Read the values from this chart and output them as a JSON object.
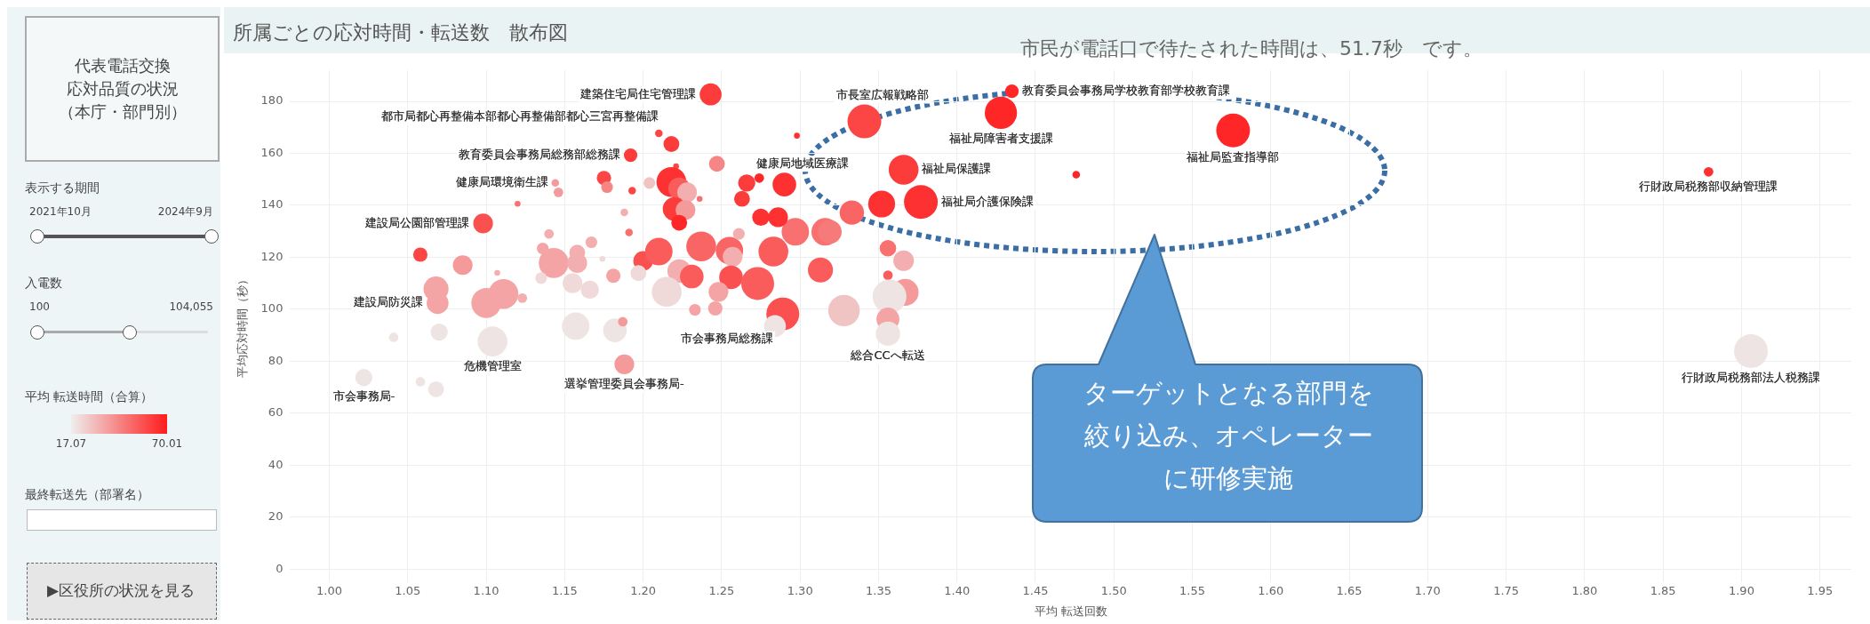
{
  "chart_data": {
    "type": "bubble",
    "title": "所属ごとの応対時間・転送数　散布図",
    "xlabel": "平均 転送回数",
    "ylabel": "平均応対時間（秒）",
    "clabel": "平均 転送時間（合算）",
    "clim": [
      17.07,
      70.01
    ],
    "cticks": [
      17.07,
      70.01
    ],
    "xlim": [
      0.975,
      1.97
    ],
    "xticks": [
      {
        "value": 1,
        "label": "1.00"
      },
      {
        "value": 1.05,
        "label": "1.05"
      },
      {
        "value": 1.1,
        "label": "1.10"
      },
      {
        "value": 1.15,
        "label": "1.15"
      },
      {
        "value": 1.2,
        "label": "1.20"
      },
      {
        "value": 1.25,
        "label": "1.25"
      },
      {
        "value": 1.3,
        "label": "1.30"
      },
      {
        "value": 1.35,
        "label": "1.35"
      },
      {
        "value": 1.4,
        "label": "1.40"
      },
      {
        "value": 1.45,
        "label": "1.45"
      },
      {
        "value": 1.5,
        "label": "1.50"
      },
      {
        "value": 1.55,
        "label": "1.55"
      },
      {
        "value": 1.6,
        "label": "1.60"
      },
      {
        "value": 1.65,
        "label": "1.65"
      },
      {
        "value": 1.7,
        "label": "1.70"
      },
      {
        "value": 1.75,
        "label": "1.75"
      },
      {
        "value": 1.8,
        "label": "1.80"
      },
      {
        "value": 1.85,
        "label": "1.85"
      },
      {
        "value": 1.9,
        "label": "1.90"
      },
      {
        "value": 1.95,
        "label": "1.95"
      }
    ],
    "ylim": [
      -5,
      192
    ],
    "yticks": [
      0,
      20,
      40,
      60,
      80,
      100,
      120,
      140,
      160,
      180
    ],
    "grid": true,
    "legend": false,
    "x": [
      1.243,
      1.21,
      1.218,
      1.192,
      1.221,
      1.247,
      1.175,
      1.177,
      1.144,
      1.146,
      1.193,
      1.204,
      1.218,
      1.223,
      1.228,
      1.236,
      1.12,
      1.188,
      1.22,
      1.227,
      1.223,
      1.098,
      1.191,
      1.14,
      1.167,
      1.136,
      1.143,
      1.158,
      1.158,
      1.058,
      1.085,
      1.107,
      1.181,
      1.135,
      1.155,
      1.166,
      1.068,
      1.069,
      1.1,
      1.111,
      1.123,
      1.174,
      1.2,
      1.21,
      1.223,
      1.215,
      1.231,
      1.237,
      1.255,
      1.257,
      1.261,
      1.256,
      1.273,
      1.248,
      1.246,
      1.233,
      1.283,
      1.289,
      1.297,
      1.316,
      1.319,
      1.313,
      1.263,
      1.266,
      1.274,
      1.29,
      1.275,
      1.286,
      1.298,
      1.328,
      1.284,
      1.07,
      1.041,
      1.104,
      1.157,
      1.182,
      1.187,
      1.188,
      1.022,
      1.058,
      1.068,
      1.197,
      1.341,
      1.435,
      1.428,
      1.576,
      1.476,
      1.366,
      1.377,
      1.352,
      1.333,
      1.356,
      1.366,
      1.356,
      1.367,
      1.357,
      1.356,
      1.356,
      1.879,
      1.906
    ],
    "values": [
      182.7,
      167.7,
      163.6,
      159.3,
      155,
      156,
      150.5,
      147,
      148.6,
      145,
      145.6,
      148.6,
      149,
      146.5,
      145,
      142.5,
      140.6,
      137.3,
      138.6,
      138.2,
      133.3,
      133,
      129.6,
      129,
      125.8,
      123.4,
      117.8,
      121.8,
      117.8,
      121,
      117,
      114,
      112.9,
      112,
      110,
      107.5,
      107.8,
      102.4,
      102.4,
      105.9,
      104.3,
      119.4,
      118.6,
      122.2,
      114.7,
      106.7,
      112.6,
      124.2,
      122.6,
      120.2,
      129,
      112.3,
      109.9,
      106.7,
      100.3,
      99.8,
      122.2,
      98.2,
      129.8,
      129.8,
      129.8,
      115.1,
      142.5,
      148.6,
      150.5,
      148,
      135.4,
      135.4,
      166.8,
      99.5,
      93.5,
      91.2,
      89.2,
      87.6,
      93.5,
      91.9,
      95.2,
      78.8,
      73.7,
      72.1,
      69.2,
      113.9,
      172.3,
      183.9,
      175.6,
      168.8,
      151.8,
      153.7,
      141.3,
      140.5,
      137.2,
      123.5,
      118.7,
      113.1,
      106.5,
      104.9,
      96.2,
      90.6,
      152.9,
      83.9
    ],
    "sizes": [
      0.42,
      0.05,
      0.22,
      0.16,
      0.03,
      0.22,
      0.18,
      0.12,
      0.05,
      0.08,
      0.05,
      0.12,
      0.78,
      0.42,
      0.34,
      0.03,
      0.03,
      0.05,
      0.49,
      0.34,
      0.22,
      0.34,
      0.05,
      0.08,
      0.12,
      0.12,
      0.78,
      0.22,
      0.34,
      0.18,
      0.34,
      0.03,
      0.18,
      0.12,
      0.34,
      0.29,
      0.55,
      0.42,
      0.78,
      0.78,
      0.08,
      0.03,
      0.34,
      0.66,
      0.49,
      0.78,
      0.49,
      0.78,
      0.66,
      0.34,
      0.12,
      0.49,
      0.95,
      0.34,
      0.18,
      0.12,
      0.78,
      0.95,
      0.66,
      0.66,
      0.49,
      0.55,
      0.22,
      0.26,
      0.08,
      0.49,
      0.26,
      0.34,
      0.03,
      0.87,
      0.42,
      0.26,
      0.08,
      0.78,
      0.66,
      0.49,
      0.08,
      0.34,
      0.26,
      0.08,
      0.22,
      0.22,
      1.0,
      0.16,
      0.91,
      1.0,
      0.05,
      0.78,
      1.0,
      0.63,
      0.52,
      0.24,
      0.37,
      0.08,
      0.63,
      1.0,
      0.46,
      0.52,
      0.08,
      1.0
    ],
    "cvalues": [
      62.1,
      59.4,
      62.1,
      62.1,
      59.4,
      43.5,
      59.4,
      43.5,
      38.2,
      38.2,
      59.4,
      27.7,
      64.7,
      54.1,
      33.0,
      48.8,
      48.8,
      33.0,
      62.1,
      38.2,
      67.4,
      56.8,
      48.8,
      33.0,
      33.0,
      35.6,
      35.6,
      33.0,
      33.0,
      59.4,
      38.2,
      33.0,
      35.6,
      22.4,
      22.4,
      22.4,
      35.6,
      35.6,
      35.6,
      35.6,
      33.0,
      22.4,
      56.8,
      54.1,
      33.0,
      22.4,
      54.1,
      51.5,
      51.5,
      33.0,
      33.0,
      56.8,
      54.1,
      35.6,
      35.6,
      35.6,
      54.1,
      56.8,
      48.8,
      48.8,
      46.2,
      54.1,
      62.1,
      62.1,
      67.4,
      64.7,
      64.7,
      64.7,
      64.7,
      27.7,
      19.7,
      19.7,
      19.7,
      19.7,
      19.7,
      19.7,
      38.2,
      38.2,
      19.7,
      19.7,
      19.7,
      22.4,
      59.4,
      67.4,
      67.4,
      67.4,
      67.4,
      62.1,
      64.7,
      64.7,
      51.5,
      48.8,
      33.0,
      54.1,
      38.2,
      19.7,
      35.6,
      19.7,
      64.7,
      19.7
    ],
    "annotations": [
      "市民が電話口で待たされた時間は、51.7秒　です。",
      "ターゲットとなる部門を",
      "絞り込み、オペレーター",
      "に研修実施",
      "代表電話交換",
      "応対品質の状況",
      "（本庁・部門別）",
      "表示する期間",
      "2021年10月",
      "2024年9月",
      "入電数",
      "100",
      "104,055",
      "最終転送先（部署名）",
      "▶区役所の状況を見る",
      {
        "text": "建築住宅局住宅管理課",
        "x": 1.243,
        "y": 182.7
      },
      {
        "text": "都市局都心再整備本部都心再整備部都心三宮再整備課",
        "x": 1.21,
        "y": 167.7
      },
      {
        "text": "教育委員会事務局総務部総務課",
        "x": 1.192,
        "y": 159.3
      },
      {
        "text": "健康局環境衛生課",
        "x": 1.144,
        "y": 148.6
      },
      {
        "text": "建設局公園部管理課",
        "x": 1.098,
        "y": 133
      },
      {
        "text": "建設局防災課",
        "x": 1.069,
        "y": 102.4
      },
      {
        "text": "市会事務局総務課",
        "x": 1.289,
        "y": 98.2
      },
      {
        "text": "危機管理室",
        "x": 1.104,
        "y": 87.6
      },
      {
        "text": "選挙管理委員会事務局-",
        "x": 1.188,
        "y": 78.8
      },
      {
        "text": "市会事務局-",
        "x": 1.022,
        "y": 73.7
      },
      {
        "text": "健康局地域医療課",
        "x": 1.29,
        "y": 148
      },
      {
        "text": "市長室広報戦略部",
        "x": 1.341,
        "y": 172.3
      },
      {
        "text": "教育委員会事務局学校教育部学校教育課",
        "x": 1.435,
        "y": 183.9
      },
      {
        "text": "福祉局障害者支援課",
        "x": 1.428,
        "y": 175.6
      },
      {
        "text": "福祉局保護課",
        "x": 1.366,
        "y": 153.7
      },
      {
        "text": "福祉局介護保険課",
        "x": 1.377,
        "y": 141.3
      },
      {
        "text": "福祉局監査指導部",
        "x": 1.576,
        "y": 168.8
      },
      {
        "text": "総合CCへ転送",
        "x": 1.356,
        "y": 90.6
      },
      {
        "text": "行財政局税務部収納管理課",
        "x": 1.879,
        "y": 152.9
      },
      {
        "text": "行財政局税務部法人税務課",
        "x": 1.906,
        "y": 83.9
      }
    ]
  }
}
